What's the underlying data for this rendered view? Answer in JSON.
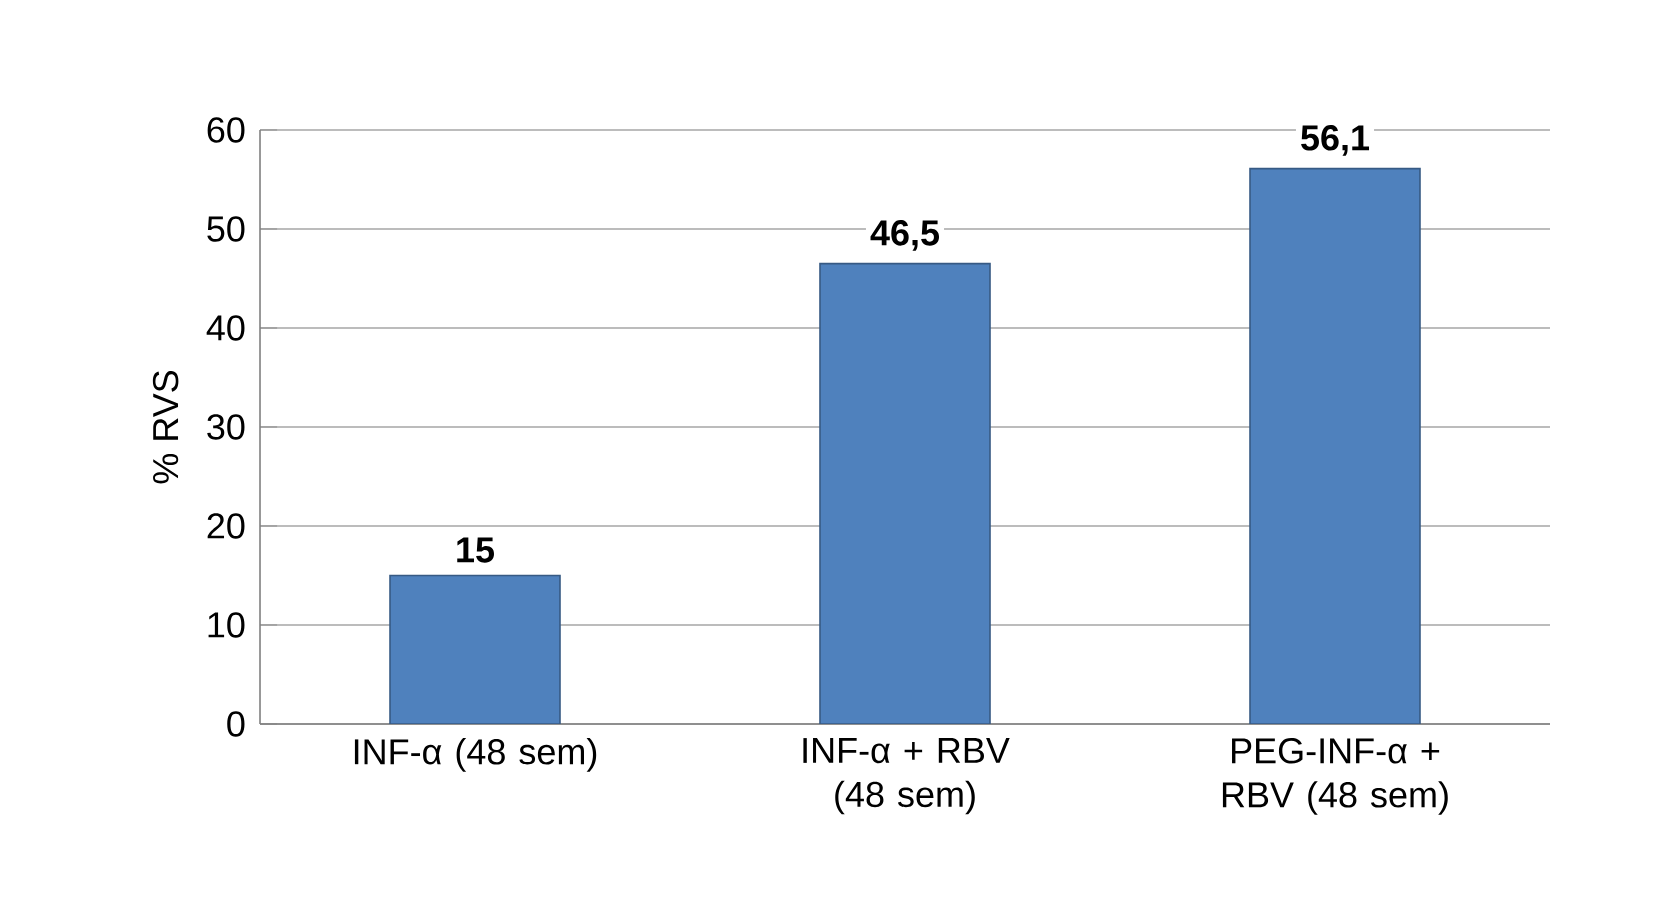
{
  "chart_data": {
    "type": "bar",
    "ylabel": "% RVS",
    "categories": [
      "INF-α (48 sem)",
      "INF-α + RBV (48 sem)",
      "PEG-INF-α + RBV (48 sem)"
    ],
    "values": [
      15,
      46.5,
      56.1
    ],
    "value_labels": [
      "15",
      "46,5",
      "56,1"
    ],
    "color": "#4f81bd",
    "ylim": [
      0,
      60
    ],
    "yticks": [
      0,
      10,
      20,
      30,
      40,
      50,
      60
    ],
    "grid": "y"
  }
}
